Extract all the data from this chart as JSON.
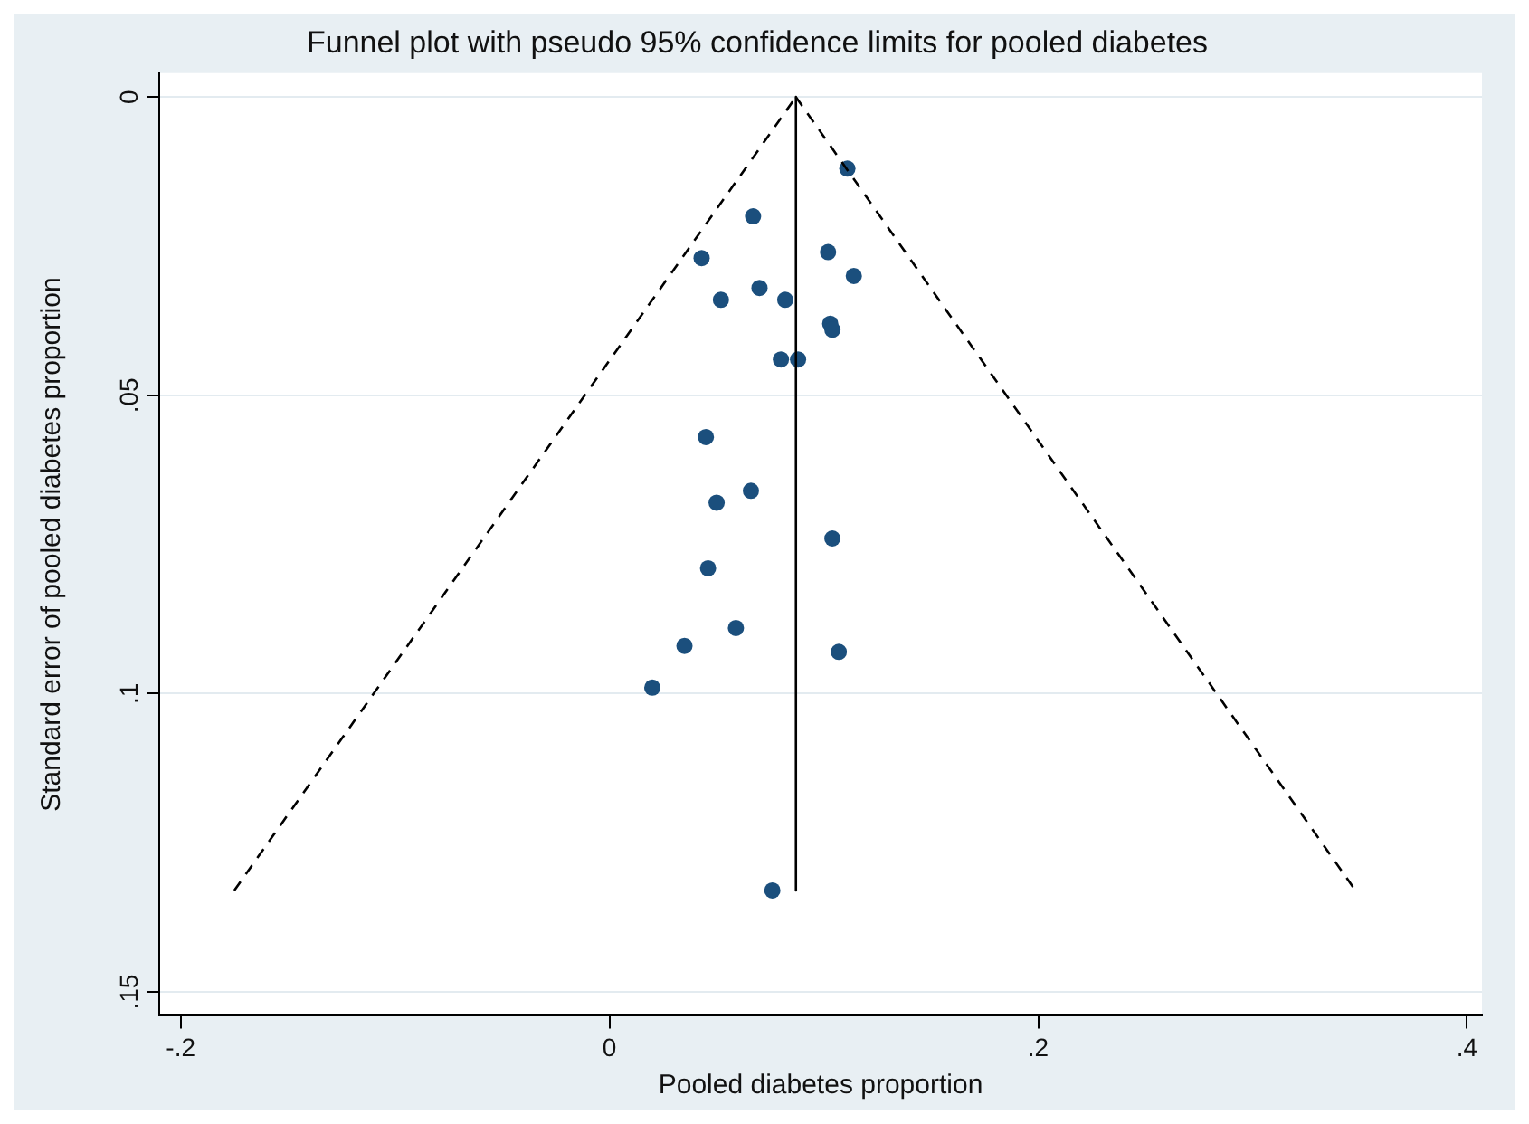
{
  "chart_data": {
    "type": "scatter",
    "title": "Funnel plot with pseudo 95% confidence limits for pooled diabetes",
    "xlabel": "Pooled diabetes proportion",
    "ylabel": "Standard error of pooled diabetes proportion",
    "xlim": [
      -0.21,
      0.407
    ],
    "ylim": [
      0.154,
      -0.004
    ],
    "xticks": [
      {
        "value": -0.2,
        "label": "-.2"
      },
      0,
      {
        "value": 0.2,
        "label": ".2"
      },
      {
        "value": 0.4,
        "label": ".4"
      }
    ],
    "yticks": [
      0,
      {
        "value": 0.05,
        "label": ".05"
      },
      {
        "value": 0.1,
        "label": ".1"
      },
      {
        "value": 0.15,
        "label": ".15"
      }
    ],
    "grid": "y",
    "legend": false,
    "marker": "circle",
    "series": [
      {
        "type": "line",
        "color": "#000000",
        "line_style": "dashed",
        "marker": "none",
        "x": [
          -0.175,
          0.087
        ],
        "values": [
          0.133,
          0
        ]
      },
      {
        "type": "line",
        "color": "#000000",
        "line_style": "dashed",
        "marker": "none",
        "x": [
          0.087,
          0.348
        ],
        "values": [
          0,
          0.133
        ]
      },
      {
        "type": "line",
        "color": "#000000",
        "line_style": "solid",
        "marker": "none",
        "x": [
          0.087,
          0.087
        ],
        "values": [
          0,
          0.133
        ]
      },
      {
        "color": "#1b4f7d",
        "x": [
          0.111,
          0.067,
          0.043,
          0.102,
          0.114,
          0.052,
          0.07,
          0.082,
          0.103,
          0.104,
          0.08,
          0.088,
          0.045,
          0.066,
          0.05,
          0.104,
          0.046,
          0.059,
          0.035,
          0.107,
          0.02,
          0.076
        ],
        "values": [
          0.012,
          0.02,
          0.027,
          0.026,
          0.03,
          0.034,
          0.032,
          0.034,
          0.038,
          0.039,
          0.044,
          0.044,
          0.057,
          0.066,
          0.068,
          0.074,
          0.079,
          0.089,
          0.092,
          0.093,
          0.099,
          0.133
        ]
      }
    ]
  }
}
